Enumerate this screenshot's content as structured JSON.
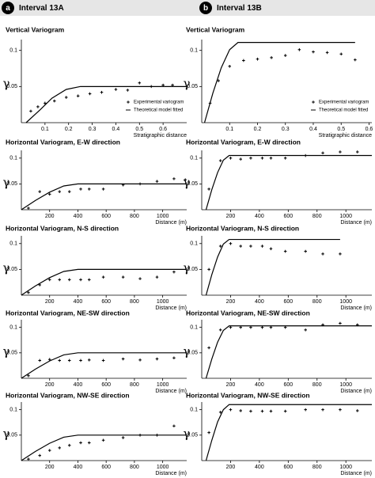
{
  "header": [
    {
      "letter": "a",
      "label": "Interval 13A"
    },
    {
      "letter": "b",
      "label": "Interval 13B"
    }
  ],
  "chart_data": [
    {
      "type": "scatter",
      "title": "Vertical Variogram",
      "y_label": "γ",
      "x_label": "Stratigraphic distance",
      "legend": "lower right",
      "xlim": [
        0,
        0.7
      ],
      "xticks": [
        0.1,
        0.2,
        0.3,
        0.4,
        0.5,
        0.6
      ],
      "ylim": [
        0,
        0.115
      ],
      "yticks": [
        0.05,
        0.1
      ],
      "series": [
        {
          "name": "Experimental variogram",
          "type": "scatter",
          "color": "#000000",
          "x": [
            0.04,
            0.07,
            0.1,
            0.14,
            0.19,
            0.24,
            0.29,
            0.34,
            0.4,
            0.45,
            0.5,
            0.55,
            0.6,
            0.64
          ],
          "values": [
            0.016,
            0.022,
            0.027,
            0.03,
            0.035,
            0.037,
            0.04,
            0.042,
            0.046,
            0.045,
            0.055,
            0.05,
            0.052,
            0.052
          ]
        },
        {
          "name": "Theoretical model fitted",
          "type": "line",
          "color": "#000000",
          "x": [
            0.02,
            0.08,
            0.13,
            0.19,
            0.25,
            0.7
          ],
          "values": [
            0,
            0.018,
            0.034,
            0.046,
            0.05,
            0.05
          ]
        }
      ]
    },
    {
      "type": "scatter",
      "title": "Horizontal Variogram, E-W direction",
      "y_label": "γ",
      "x_label": "Distance (m)",
      "xlim": [
        0,
        1170
      ],
      "xticks": [
        200,
        400,
        600,
        800,
        1000
      ],
      "ylim": [
        0,
        0.115
      ],
      "yticks": [
        0.05,
        0.1
      ],
      "series": [
        {
          "type": "scatter",
          "color": "#000000",
          "x": [
            50,
            130,
            200,
            270,
            340,
            420,
            480,
            580,
            720,
            840,
            960,
            1080,
            1160
          ],
          "values": [
            0.003,
            0.035,
            0.03,
            0.035,
            0.035,
            0.04,
            0.04,
            0.04,
            0.048,
            0.05,
            0.055,
            0.06,
            0.058
          ]
        },
        {
          "type": "line",
          "color": "#000000",
          "x": [
            0,
            100,
            200,
            300,
            400,
            1170
          ],
          "values": [
            0,
            0.018,
            0.034,
            0.046,
            0.05,
            0.05
          ]
        }
      ]
    },
    {
      "type": "scatter",
      "title": "Horizontal Variogram, N-S direction",
      "y_label": "γ",
      "x_label": "Distance (m)",
      "xlim": [
        0,
        1170
      ],
      "xticks": [
        200,
        400,
        600,
        800,
        1000
      ],
      "ylim": [
        0,
        0.115
      ],
      "yticks": [
        0.05,
        0.1
      ],
      "series": [
        {
          "type": "scatter",
          "color": "#000000",
          "x": [
            50,
            130,
            200,
            270,
            340,
            420,
            480,
            580,
            720,
            840,
            960,
            1080
          ],
          "values": [
            0.005,
            0.02,
            0.03,
            0.03,
            0.03,
            0.03,
            0.03,
            0.035,
            0.035,
            0.032,
            0.035,
            0.045
          ]
        },
        {
          "type": "line",
          "color": "#000000",
          "x": [
            0,
            100,
            200,
            300,
            400,
            1170
          ],
          "values": [
            0,
            0.018,
            0.034,
            0.046,
            0.05,
            0.05
          ]
        }
      ]
    },
    {
      "type": "scatter",
      "title": "Horizontal Variogram, NE-SW direction",
      "y_label": "γ",
      "x_label": "Distance (m)",
      "xlim": [
        0,
        1170
      ],
      "xticks": [
        200,
        400,
        600,
        800,
        1000
      ],
      "ylim": [
        0,
        0.115
      ],
      "yticks": [
        0.05,
        0.1
      ],
      "series": [
        {
          "type": "scatter",
          "color": "#000000",
          "x": [
            50,
            130,
            200,
            270,
            340,
            420,
            480,
            580,
            720,
            840,
            960,
            1080
          ],
          "values": [
            0.005,
            0.035,
            0.037,
            0.035,
            0.035,
            0.035,
            0.036,
            0.035,
            0.038,
            0.036,
            0.038,
            0.04
          ]
        },
        {
          "type": "line",
          "color": "#000000",
          "x": [
            0,
            100,
            200,
            300,
            400,
            1170
          ],
          "values": [
            0,
            0.018,
            0.034,
            0.046,
            0.05,
            0.05
          ]
        }
      ]
    },
    {
      "type": "scatter",
      "title": "Horizontal Variogram, NW-SE direction",
      "y_label": "γ",
      "x_label": "Distance (m)",
      "xlim": [
        0,
        1170
      ],
      "xticks": [
        200,
        400,
        600,
        800,
        1000
      ],
      "ylim": [
        0,
        0.115
      ],
      "yticks": [
        0.05,
        0.1
      ],
      "series": [
        {
          "type": "scatter",
          "color": "#000000",
          "x": [
            50,
            130,
            200,
            270,
            340,
            420,
            480,
            580,
            720,
            840,
            960,
            1080
          ],
          "values": [
            0.003,
            0.01,
            0.02,
            0.025,
            0.03,
            0.035,
            0.035,
            0.04,
            0.045,
            0.05,
            0.05,
            0.068
          ]
        },
        {
          "type": "line",
          "color": "#000000",
          "x": [
            0,
            100,
            200,
            300,
            400,
            1170
          ],
          "values": [
            0,
            0.018,
            0.034,
            0.046,
            0.05,
            0.05
          ]
        }
      ]
    },
    {
      "type": "scatter",
      "title": "Vertical Variogram",
      "y_label": "γ",
      "x_label": "Stratigraphic distance",
      "legend": "lower right",
      "xlim": [
        0,
        0.61
      ],
      "xticks": [
        0.1,
        0.2,
        0.3,
        0.4,
        0.5,
        0.6
      ],
      "ylim": [
        0,
        0.115
      ],
      "yticks": [
        0.05,
        0.1
      ],
      "series": [
        {
          "name": "Experimental variogram",
          "type": "scatter",
          "color": "#000000",
          "x": [
            0.03,
            0.06,
            0.1,
            0.15,
            0.2,
            0.25,
            0.3,
            0.35,
            0.4,
            0.45,
            0.5,
            0.55
          ],
          "values": [
            0.027,
            0.058,
            0.078,
            0.086,
            0.088,
            0.09,
            0.093,
            0.101,
            0.098,
            0.097,
            0.095,
            0.087
          ]
        },
        {
          "name": "Theoretical model fitted",
          "type": "line",
          "color": "#000000",
          "x": [
            0.01,
            0.04,
            0.07,
            0.1,
            0.13,
            0.55
          ],
          "values": [
            0,
            0.041,
            0.076,
            0.101,
            0.111,
            0.111
          ]
        }
      ]
    },
    {
      "type": "scatter",
      "title": "Horizontal Variogram, E-W direction",
      "y_label": "γ",
      "x_label": "Distance (m)",
      "xlim": [
        0,
        1180
      ],
      "xticks": [
        200,
        400,
        600,
        800,
        1000
      ],
      "ylim": [
        0,
        0.115
      ],
      "yticks": [
        0.05,
        0.1
      ],
      "series": [
        {
          "type": "scatter",
          "color": "#000000",
          "x": [
            50,
            130,
            200,
            270,
            340,
            420,
            480,
            580,
            720,
            840,
            960,
            1080
          ],
          "values": [
            0.04,
            0.095,
            0.1,
            0.098,
            0.1,
            0.1,
            0.1,
            0.1,
            0.105,
            0.11,
            0.112,
            0.112
          ]
        },
        {
          "type": "line",
          "color": "#000000",
          "x": [
            30,
            70,
            110,
            150,
            190,
            1180
          ],
          "values": [
            0,
            0.039,
            0.072,
            0.096,
            0.105,
            0.105
          ]
        }
      ]
    },
    {
      "type": "scatter",
      "title": "Horizontal Variogram, N-S direction",
      "y_label": "γ",
      "x_label": "Distance (m)",
      "xlim": [
        0,
        1180
      ],
      "xticks": [
        200,
        400,
        600,
        800,
        1000
      ],
      "ylim": [
        0,
        0.115
      ],
      "yticks": [
        0.05,
        0.1
      ],
      "series": [
        {
          "type": "scatter",
          "color": "#000000",
          "x": [
            50,
            130,
            200,
            270,
            340,
            420,
            480,
            580,
            720,
            840,
            960
          ],
          "values": [
            0.05,
            0.095,
            0.1,
            0.095,
            0.095,
            0.095,
            0.09,
            0.085,
            0.085,
            0.08,
            0.08
          ]
        },
        {
          "type": "line",
          "color": "#000000",
          "x": [
            30,
            70,
            110,
            150,
            190,
            960
          ],
          "values": [
            0,
            0.04,
            0.074,
            0.099,
            0.108,
            0.108
          ]
        }
      ]
    },
    {
      "type": "scatter",
      "title": "Horizontal Variogram, NE-SW direction",
      "y_label": "γ",
      "x_label": "Distance (m)",
      "xlim": [
        0,
        1180
      ],
      "xticks": [
        200,
        400,
        600,
        800,
        1000
      ],
      "ylim": [
        0,
        0.115
      ],
      "yticks": [
        0.05,
        0.1
      ],
      "series": [
        {
          "type": "scatter",
          "color": "#000000",
          "x": [
            50,
            130,
            200,
            270,
            340,
            420,
            480,
            580,
            720,
            840,
            960,
            1080
          ],
          "values": [
            0.06,
            0.095,
            0.1,
            0.1,
            0.1,
            0.1,
            0.1,
            0.1,
            0.095,
            0.105,
            0.108,
            0.105
          ]
        },
        {
          "type": "line",
          "color": "#000000",
          "x": [
            30,
            70,
            110,
            150,
            190,
            1180
          ],
          "values": [
            0,
            0.038,
            0.071,
            0.094,
            0.103,
            0.103
          ]
        }
      ]
    },
    {
      "type": "scatter",
      "title": "Horizontal Variogram, NW-SE direction",
      "y_label": "γ",
      "x_label": "Distance (m)",
      "xlim": [
        0,
        1180
      ],
      "xticks": [
        200,
        400,
        600,
        800,
        1000
      ],
      "ylim": [
        0,
        0.115
      ],
      "yticks": [
        0.05,
        0.1
      ],
      "series": [
        {
          "type": "scatter",
          "color": "#000000",
          "x": [
            50,
            130,
            200,
            270,
            340,
            420,
            480,
            580,
            720,
            840,
            960,
            1080
          ],
          "values": [
            0.055,
            0.095,
            0.1,
            0.098,
            0.097,
            0.097,
            0.097,
            0.097,
            0.1,
            0.1,
            0.1,
            0.098
          ]
        },
        {
          "type": "line",
          "color": "#000000",
          "x": [
            30,
            70,
            110,
            150,
            190,
            1180
          ],
          "values": [
            0,
            0.04,
            0.076,
            0.1,
            0.11,
            0.11
          ]
        }
      ]
    }
  ]
}
